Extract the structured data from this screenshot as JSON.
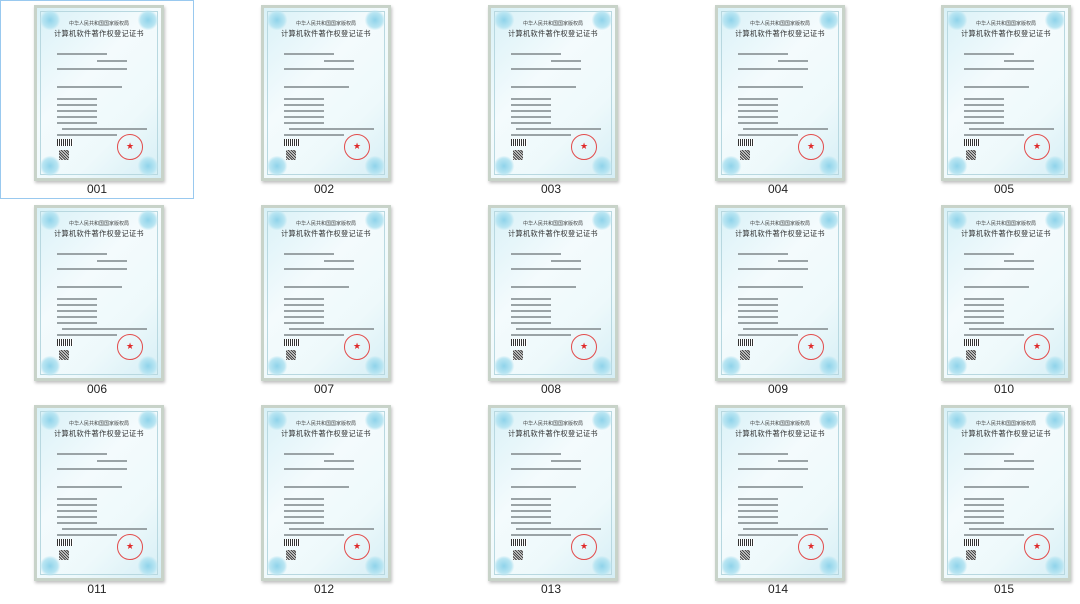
{
  "certificate": {
    "authority": "中华人民共和国国家版权局",
    "title": "计算机软件著作权登记证书"
  },
  "icons": {
    "seal": "star-seal-icon"
  },
  "selected_index": 0,
  "items": [
    {
      "label": "001"
    },
    {
      "label": "002"
    },
    {
      "label": "003"
    },
    {
      "label": "004"
    },
    {
      "label": "005"
    },
    {
      "label": "006"
    },
    {
      "label": "007"
    },
    {
      "label": "008"
    },
    {
      "label": "009"
    },
    {
      "label": "010"
    },
    {
      "label": "011"
    },
    {
      "label": "012"
    },
    {
      "label": "013"
    },
    {
      "label": "014"
    },
    {
      "label": "015"
    }
  ]
}
